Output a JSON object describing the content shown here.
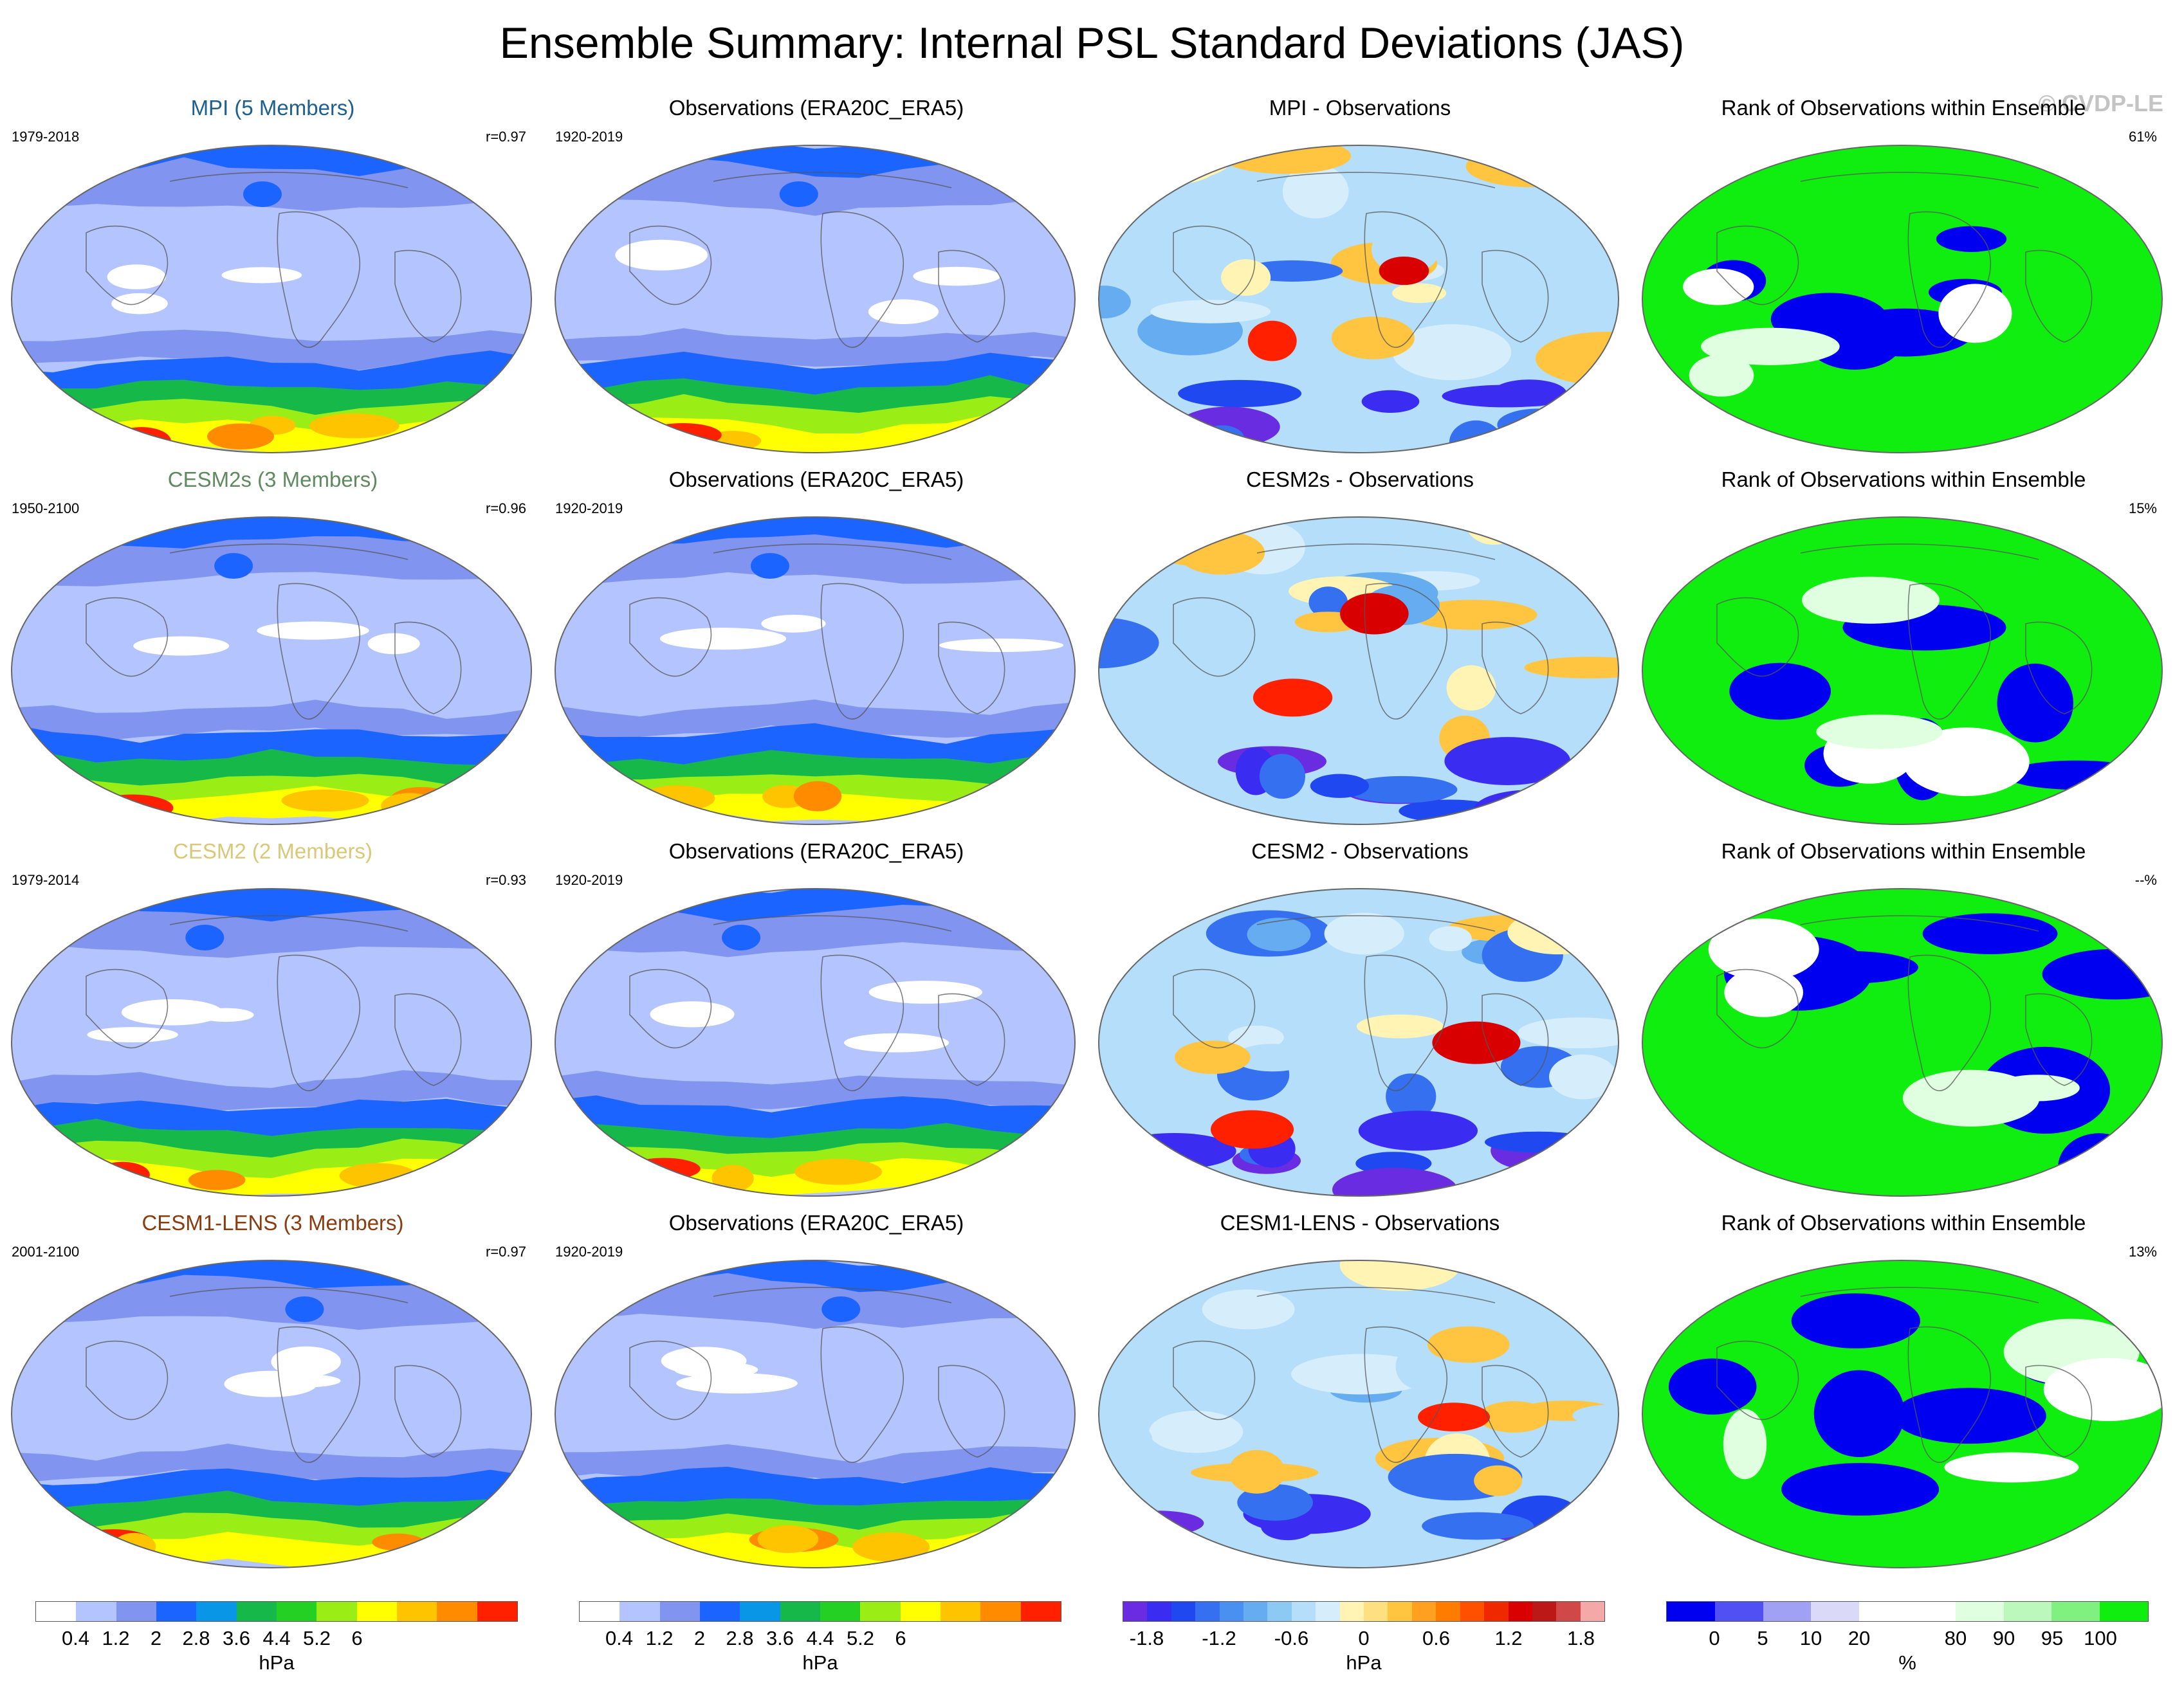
{
  "title": "Ensemble Summary: Internal PSL Standard Deviations (JAS)",
  "watermark": "© CVDP-LE",
  "rows": [
    {
      "model_title": "MPI (5 Members)",
      "model_color": "#1d6090",
      "model_period": "1979-2018",
      "correlation": "r=0.97",
      "obs_title": "Observations (ERA20C_ERA5)",
      "obs_period": "1920-2019",
      "diff_title": "MPI - Observations",
      "rank_title": "Rank of Observations within Ensemble",
      "rank_pct": "61%"
    },
    {
      "model_title": "CESM2s (3 Members)",
      "model_color": "#5f8a5f",
      "model_period": "1950-2100",
      "correlation": "r=0.96",
      "obs_title": "Observations (ERA20C_ERA5)",
      "obs_period": "1920-2019",
      "diff_title": "CESM2s - Observations",
      "rank_title": "Rank of Observations within Ensemble",
      "rank_pct": "15%"
    },
    {
      "model_title": "CESM2 (2 Members)",
      "model_color": "#d8c878",
      "model_period": "1979-2014",
      "correlation": "r=0.93",
      "obs_title": "Observations (ERA20C_ERA5)",
      "obs_period": "1920-2019",
      "diff_title": "CESM2 - Observations",
      "rank_title": "Rank of Observations within Ensemble",
      "rank_pct": "--%"
    },
    {
      "model_title": "CESM1-LENS (3 Members)",
      "model_color": "#8a3c10",
      "model_period": "2001-2100",
      "correlation": "r=0.97",
      "obs_title": "Observations (ERA20C_ERA5)",
      "obs_period": "1920-2019",
      "diff_title": "CESM1-LENS - Observations",
      "rank_title": "Rank of Observations within Ensemble",
      "rank_pct": "13%"
    }
  ],
  "colorbars": {
    "sd": {
      "unit": "hPa",
      "colors": [
        "#ffffff",
        "#b4c4ff",
        "#8094f0",
        "#1c64ff",
        "#0a96e6",
        "#16b84a",
        "#24d024",
        "#9aee16",
        "#ffff00",
        "#ffc400",
        "#ff8c00",
        "#ff2000"
      ],
      "ticks": [
        "0.4",
        "1.2",
        "2",
        "2.8",
        "3.6",
        "4.4",
        "5.2",
        "6"
      ]
    },
    "diff": {
      "unit": "hPa",
      "colors": [
        "#6a2ce0",
        "#3a2cf0",
        "#2048f0",
        "#3470f0",
        "#4a90f0",
        "#66acf0",
        "#8ccaf4",
        "#b4defa",
        "#d6eefc",
        "#fff4b4",
        "#ffe080",
        "#ffc440",
        "#ffa020",
        "#ff7c00",
        "#ff5000",
        "#f02800",
        "#d80000",
        "#bc1818",
        "#d04848",
        "#f4a8a8"
      ],
      "ticks": [
        "-1.8",
        "-1.2",
        "-0.6",
        "0",
        "0.6",
        "1.2",
        "1.8"
      ]
    },
    "rank": {
      "unit": "%",
      "colors": [
        "#0000f0",
        "#5050f4",
        "#a0a0f4",
        "#dadaf8",
        "#ffffff",
        "#ffffff",
        "#e0ffe0",
        "#bcf8bc",
        "#80f080",
        "#10ee10"
      ],
      "ticks": [
        "0",
        "5",
        "10",
        "20",
        "80",
        "90",
        "95",
        "100"
      ]
    }
  },
  "map_palette": {
    "sd": [
      "#b4c4ff",
      "#8094f0",
      "#1c64ff",
      "#16b84a",
      "#9aee16",
      "#ffff00",
      "#ffc400",
      "#ff8c00",
      "#ff2000",
      "#ffffff"
    ],
    "diff": [
      "#d6eefc",
      "#b4defa",
      "#66acf0",
      "#3470f0",
      "#2048f0",
      "#3a2cf0",
      "#6a2ce0",
      "#fff4b4",
      "#ffc440",
      "#ff8c00",
      "#ff2000",
      "#d80000"
    ],
    "rank": [
      "#10ee10",
      "#0000f0",
      "#ffffff",
      "#e0ffe0"
    ]
  }
}
